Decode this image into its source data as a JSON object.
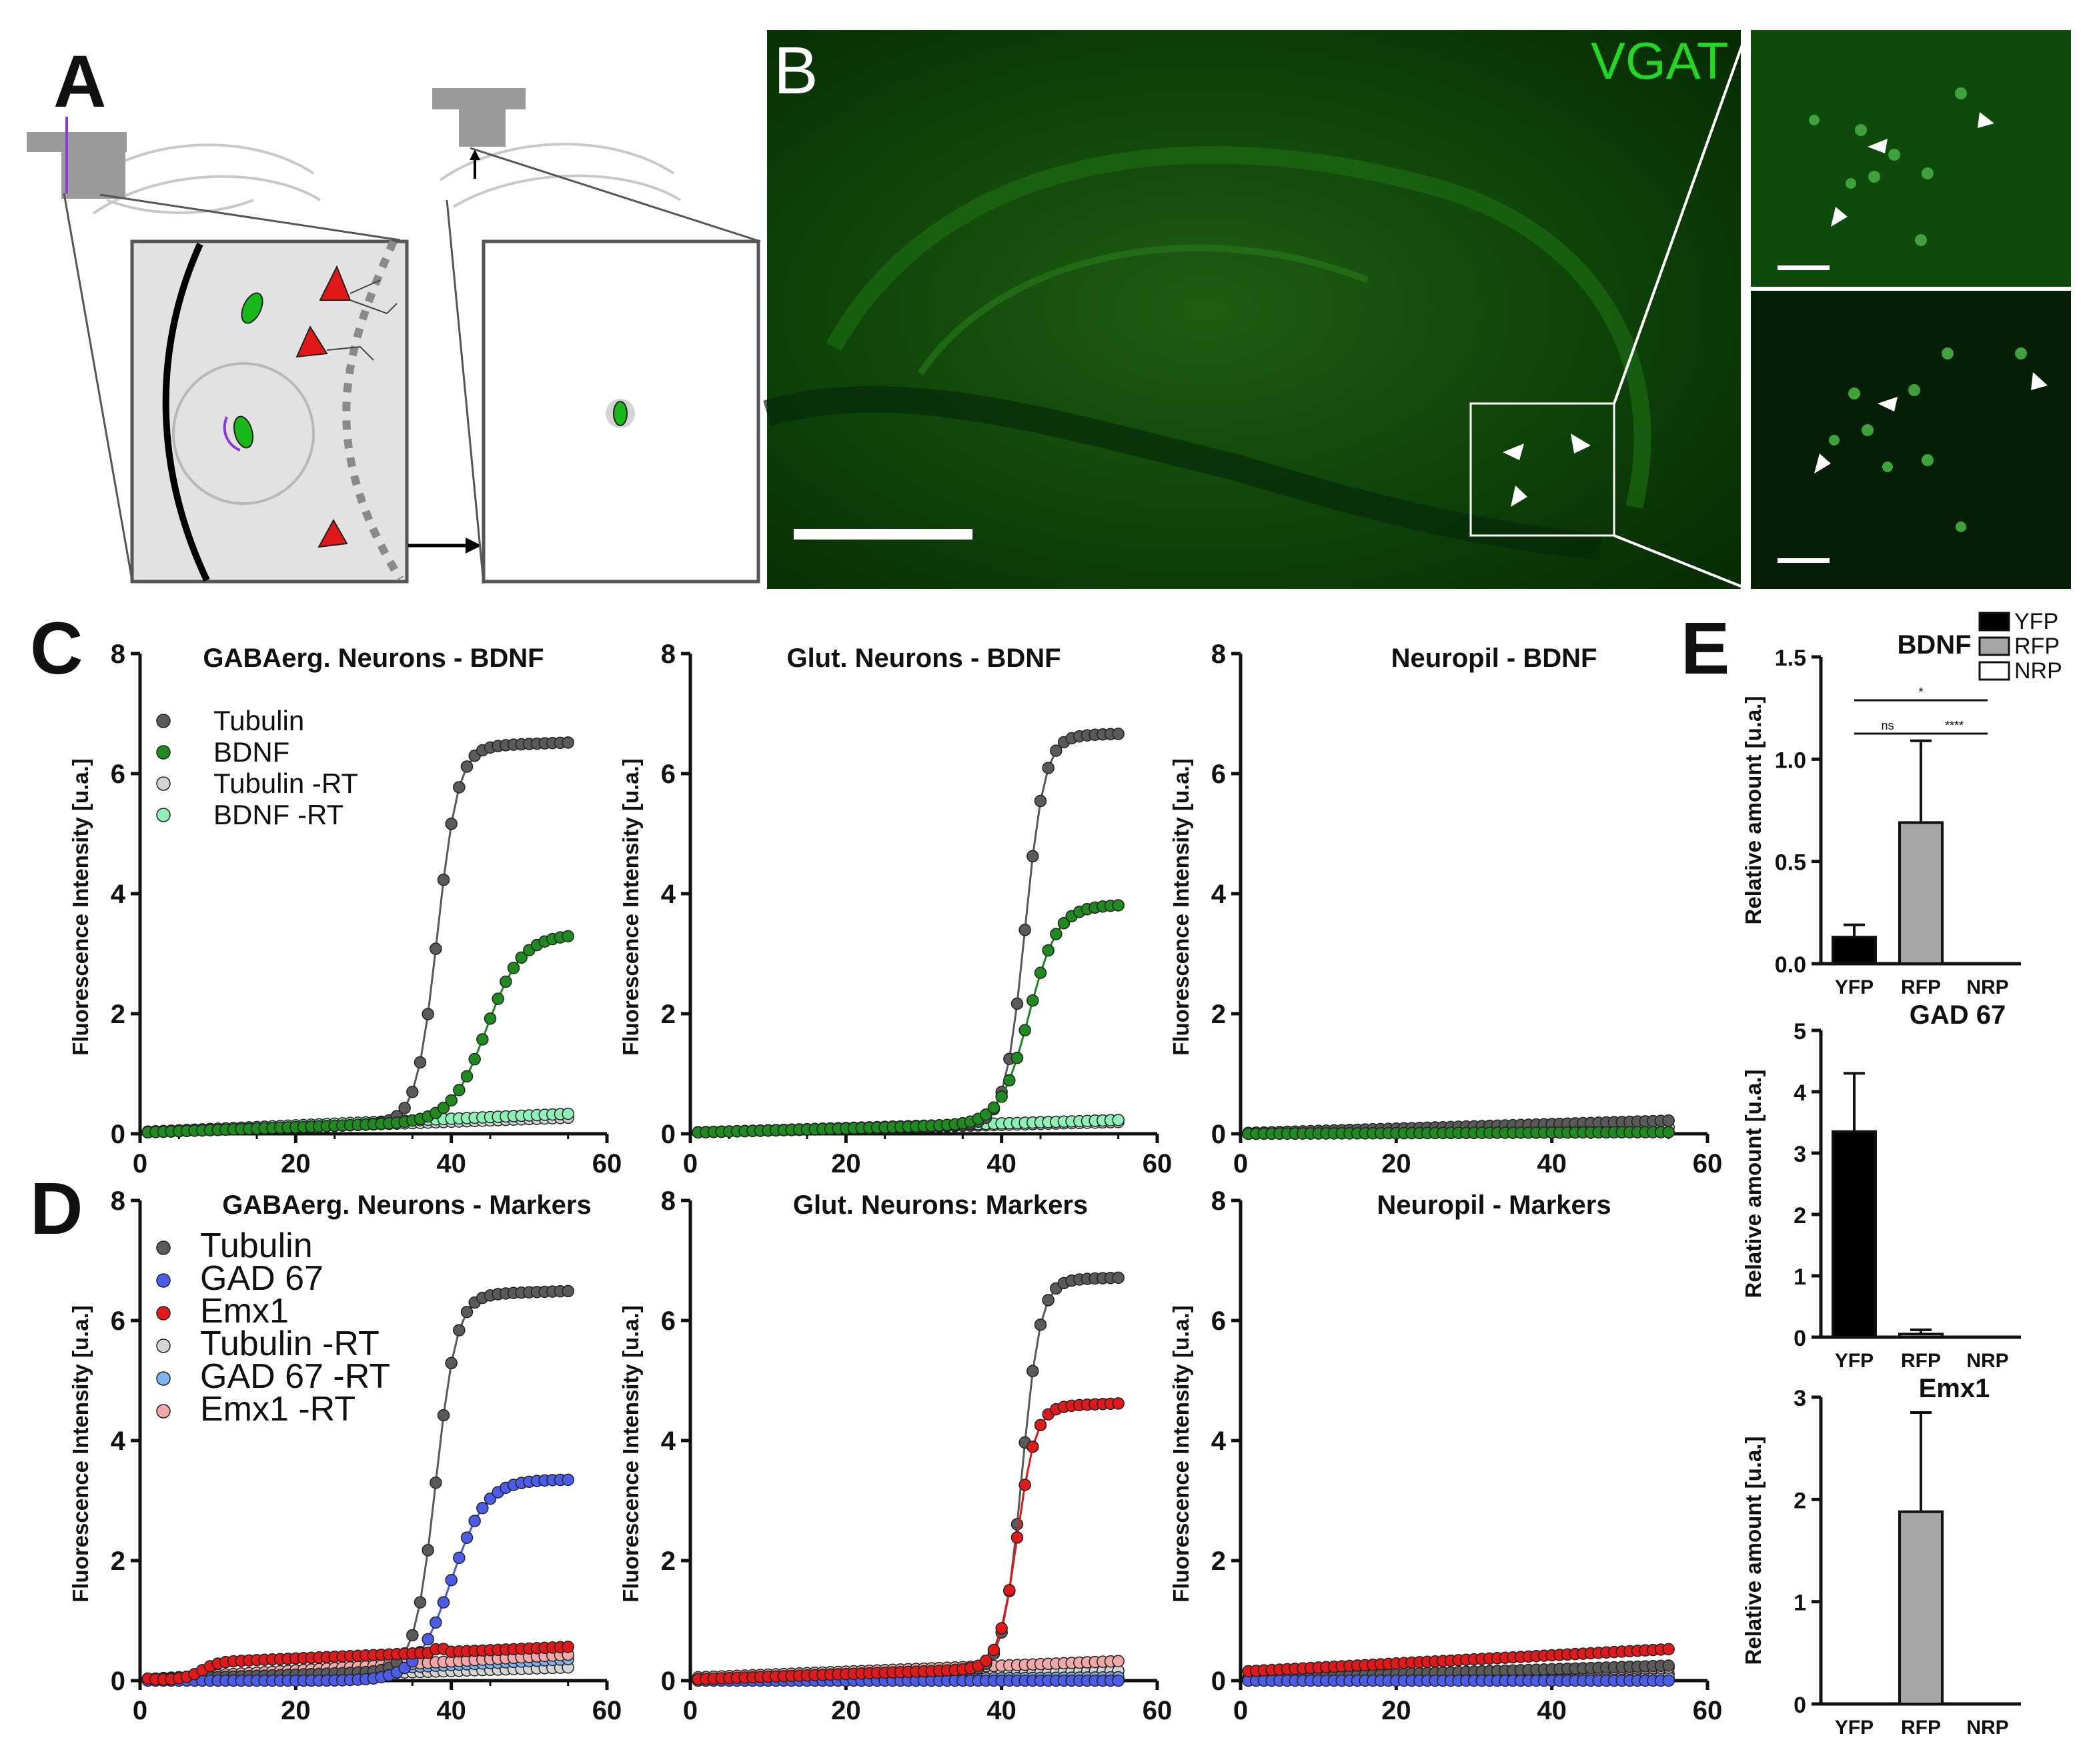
{
  "panel_labels": {
    "a": "A",
    "b": "B",
    "c": "C",
    "d": "D",
    "e": "E"
  },
  "micrograph": {
    "channel_label": "VGAT",
    "channel_color": "#22d822"
  },
  "colors": {
    "tubulin": "#5a5a5a",
    "bdnf": "#1f8a1f",
    "tubulin_rt": "#d4d4d4",
    "bdnf_rt": "#8ef0b8",
    "gad67": "#4a5ce8",
    "emx1": "#e01a1a",
    "gad67_rt": "#7db4f0",
    "emx1_rt": "#f0a8a8",
    "yfp_bar": "#000000",
    "rfp_bar": "#a6a6a6",
    "nrp_bar": "#ffffff"
  },
  "chart_data": [
    {
      "id": "c1",
      "type": "line",
      "title": "GABAerg. Neurons - BDNF",
      "xlabel": "",
      "ylabel": "Fluorescence Intensity [u.a.]",
      "xlim": [
        0,
        60
      ],
      "ylim": [
        0,
        8
      ],
      "xticks": [
        0,
        20,
        40,
        60
      ],
      "yticks": [
        0,
        2,
        4,
        6,
        8
      ],
      "grid": false,
      "legend_position": "upper-left",
      "series": [
        {
          "name": "Tubulin",
          "color_key": "tubulin",
          "legend": true,
          "shape": "sigmoid",
          "base": 0.02,
          "slope": 0.0045,
          "top": 6.25,
          "mid": 38.2,
          "k": 0.75
        },
        {
          "name": "BDNF",
          "color_key": "bdnf",
          "legend": true,
          "shape": "sigmoid",
          "base": 0.02,
          "slope": 0.0045,
          "top": 3.05,
          "mid": 44.5,
          "k": 0.45
        },
        {
          "name": "Tubulin -RT",
          "color_key": "tubulin_rt",
          "legend": true,
          "shape": "linear",
          "base": 0.02,
          "slope": 0.0045
        },
        {
          "name": "BDNF -RT",
          "color_key": "bdnf_rt",
          "legend": true,
          "shape": "linear",
          "base": 0.03,
          "slope": 0.0055
        }
      ]
    },
    {
      "id": "c2",
      "type": "line",
      "title": "Glut. Neurons - BDNF",
      "xlabel": "",
      "ylabel": "Fluorescence Intensity [u.a.]",
      "xlim": [
        0,
        60
      ],
      "ylim": [
        0,
        8
      ],
      "xticks": [
        0,
        20,
        40,
        60
      ],
      "yticks": [
        0,
        2,
        4,
        6,
        8
      ],
      "grid": false,
      "legend_position": "none",
      "series": [
        {
          "name": "Tubulin",
          "color_key": "tubulin",
          "legend": false,
          "shape": "sigmoid",
          "base": 0.02,
          "slope": 0.0035,
          "top": 6.45,
          "mid": 43.0,
          "k": 0.8
        },
        {
          "name": "BDNF",
          "color_key": "bdnf",
          "legend": false,
          "shape": "sigmoid",
          "base": 0.02,
          "slope": 0.0035,
          "top": 3.6,
          "mid": 43.5,
          "k": 0.55
        },
        {
          "name": "Tubulin -RT",
          "color_key": "tubulin_rt",
          "legend": false,
          "shape": "linear",
          "base": 0.02,
          "slope": 0.0032
        },
        {
          "name": "BDNF -RT",
          "color_key": "bdnf_rt",
          "legend": false,
          "shape": "linear",
          "base": 0.02,
          "slope": 0.0038
        }
      ]
    },
    {
      "id": "c3",
      "type": "line",
      "title": "Neuropil - BDNF",
      "xlabel": "",
      "ylabel": "Fluorescence Intensity [u.a.]",
      "xlim": [
        0,
        60
      ],
      "ylim": [
        0,
        8
      ],
      "xticks": [
        0,
        20,
        40,
        60
      ],
      "yticks": [
        0,
        2,
        4,
        6,
        8
      ],
      "grid": false,
      "legend_position": "none",
      "series": [
        {
          "name": "Tubulin",
          "color_key": "tubulin",
          "legend": false,
          "shape": "linear",
          "base": 0.01,
          "slope": 0.0038
        },
        {
          "name": "BDNF",
          "color_key": "bdnf",
          "legend": false,
          "shape": "linear",
          "base": 0.0,
          "slope": 0.0005
        },
        {
          "name": "Tubulin -RT",
          "color_key": "tubulin_rt",
          "legend": false,
          "shape": "linear",
          "base": 0.0,
          "slope": 0.002
        },
        {
          "name": "BDNF -RT",
          "color_key": "bdnf_rt",
          "legend": false,
          "shape": "linear",
          "base": 0.0,
          "slope": 0.0005
        }
      ]
    },
    {
      "id": "d1",
      "type": "line",
      "title": "GABAerg. Neurons - Markers",
      "xlabel": "",
      "ylabel": "Fluorescence Intensity [u.a.]",
      "xlim": [
        0,
        60
      ],
      "ylim": [
        0,
        8
      ],
      "xticks": [
        0,
        20,
        40,
        60
      ],
      "yticks": [
        0,
        2,
        4,
        6,
        8
      ],
      "grid": false,
      "legend_position": "upper-left",
      "series": [
        {
          "name": "Tubulin",
          "color_key": "tubulin",
          "legend": true,
          "shape": "sigmoid",
          "base": 0.02,
          "slope": 0.004,
          "top": 6.25,
          "mid": 38.0,
          "k": 0.75
        },
        {
          "name": "GAD 67",
          "color_key": "gad67",
          "legend": true,
          "shape": "sigmoid",
          "base": 0.0,
          "slope": 0.0,
          "top": 3.35,
          "mid": 40.0,
          "k": 0.45
        },
        {
          "name": "Emx1",
          "color_key": "emx1",
          "legend": true,
          "shape": "emx1_gaba"
        },
        {
          "name": "Tubulin -RT",
          "color_key": "tubulin_rt",
          "legend": true,
          "shape": "linear",
          "base": 0.0,
          "slope": 0.004
        },
        {
          "name": "GAD 67 -RT",
          "color_key": "gad67_rt",
          "legend": true,
          "shape": "linear",
          "base": 0.0,
          "slope": 0.0065
        },
        {
          "name": "Emx1 -RT",
          "color_key": "emx1_rt",
          "legend": true,
          "shape": "linear",
          "base": 0.02,
          "slope": 0.0075
        }
      ]
    },
    {
      "id": "d2",
      "type": "line",
      "title": "Glut. Neurons: Markers",
      "xlabel": "",
      "ylabel": "Fluorescence Intensity [u.a.]",
      "xlim": [
        0,
        60
      ],
      "ylim": [
        0,
        8
      ],
      "xticks": [
        0,
        20,
        40,
        60
      ],
      "yticks": [
        0,
        2,
        4,
        6,
        8
      ],
      "grid": false,
      "legend_position": "none",
      "series": [
        {
          "name": "Tubulin",
          "color_key": "tubulin",
          "legend": false,
          "shape": "sigmoid",
          "base": 0.02,
          "slope": 0.0035,
          "top": 6.5,
          "mid": 42.6,
          "k": 0.85
        },
        {
          "name": "GAD 67",
          "color_key": "gad67",
          "legend": false,
          "shape": "linear",
          "base": 0.0,
          "slope": 0.0
        },
        {
          "name": "Emx1",
          "color_key": "emx1",
          "legend": false,
          "shape": "sigmoid",
          "base": 0.02,
          "slope": 0.0045,
          "top": 4.35,
          "mid": 42.0,
          "k": 0.85
        },
        {
          "name": "Tubulin -RT",
          "color_key": "tubulin_rt",
          "legend": false,
          "shape": "linear",
          "base": 0.0,
          "slope": 0.003
        },
        {
          "name": "GAD 67 -RT",
          "color_key": "gad67_rt",
          "legend": false,
          "shape": "linear",
          "base": 0.0,
          "slope": 0.001
        },
        {
          "name": "Emx1 -RT",
          "color_key": "emx1_rt",
          "legend": false,
          "shape": "linear",
          "base": 0.05,
          "slope": 0.005
        }
      ]
    },
    {
      "id": "d3",
      "type": "line",
      "title": "Neuropil - Markers",
      "xlabel": "",
      "ylabel": "Fluorescence Intensity [u.a.]",
      "xlim": [
        0,
        60
      ],
      "ylim": [
        0,
        8
      ],
      "xticks": [
        0,
        20,
        40,
        60
      ],
      "yticks": [
        0,
        2,
        4,
        6,
        8
      ],
      "grid": false,
      "legend_position": "none",
      "series": [
        {
          "name": "Tubulin",
          "color_key": "tubulin",
          "legend": false,
          "shape": "linear",
          "base": 0.03,
          "slope": 0.004
        },
        {
          "name": "GAD 67",
          "color_key": "gad67",
          "legend": false,
          "shape": "linear",
          "base": 0.0,
          "slope": 0.0
        },
        {
          "name": "Emx1",
          "color_key": "emx1",
          "legend": false,
          "shape": "linear",
          "base": 0.15,
          "slope": 0.0068
        },
        {
          "name": "Tubulin -RT",
          "color_key": "tubulin_rt",
          "legend": false,
          "shape": "linear",
          "base": 0.0,
          "slope": 0.002
        },
        {
          "name": "GAD 67 -RT",
          "color_key": "gad67_rt",
          "legend": false,
          "shape": "linear",
          "base": 0.0,
          "slope": 0.001
        },
        {
          "name": "Emx1 -RT",
          "color_key": "emx1_rt",
          "legend": false,
          "shape": "linear",
          "base": 0.05,
          "slope": 0.003
        }
      ]
    },
    {
      "id": "e1",
      "type": "bar",
      "title": "BDNF",
      "xlabel": "",
      "ylabel": "Relative amount [u.a.]",
      "categories": [
        "YFP",
        "RFP",
        "NRP"
      ],
      "values": [
        0.13,
        0.69,
        0.0
      ],
      "errors": [
        0.06,
        0.4,
        0.0
      ],
      "ylim": [
        0,
        1.5
      ],
      "yticks": [
        "0.0",
        "0.5",
        "1.0",
        "1.5"
      ],
      "grid": false,
      "legend_position": "top-right",
      "legend": [
        {
          "name": "YFP",
          "color_key": "yfp_bar"
        },
        {
          "name": "RFP",
          "color_key": "rfp_bar"
        },
        {
          "name": "NRP",
          "color_key": "nrp_bar"
        }
      ],
      "significance": [
        {
          "label": "*",
          "from": 0,
          "to": 2
        },
        {
          "label": "ns",
          "from": 0,
          "to": 1
        },
        {
          "label": "****",
          "from": 1,
          "to": 2
        }
      ]
    },
    {
      "id": "e2",
      "type": "bar",
      "title": "GAD 67",
      "xlabel": "",
      "ylabel": "Relative amount [u.a.]",
      "categories": [
        "YFP",
        "RFP",
        "NRP"
      ],
      "values": [
        3.35,
        0.05,
        0.0
      ],
      "errors": [
        0.95,
        0.07,
        0.0
      ],
      "ylim": [
        0,
        5
      ],
      "yticks": [
        "0",
        "1",
        "2",
        "3",
        "4",
        "5"
      ],
      "grid": false,
      "legend_position": "none"
    },
    {
      "id": "e3",
      "type": "bar",
      "title": "Emx1",
      "xlabel": "",
      "ylabel": "Relative amount [u.a.]",
      "categories": [
        "YFP",
        "RFP",
        "NRP"
      ],
      "values": [
        0.0,
        1.88,
        0.0
      ],
      "errors": [
        0.0,
        0.97,
        0.0
      ],
      "ylim": [
        0,
        3
      ],
      "yticks": [
        "0",
        "1",
        "2",
        "3"
      ],
      "grid": false,
      "legend_position": "none"
    }
  ]
}
